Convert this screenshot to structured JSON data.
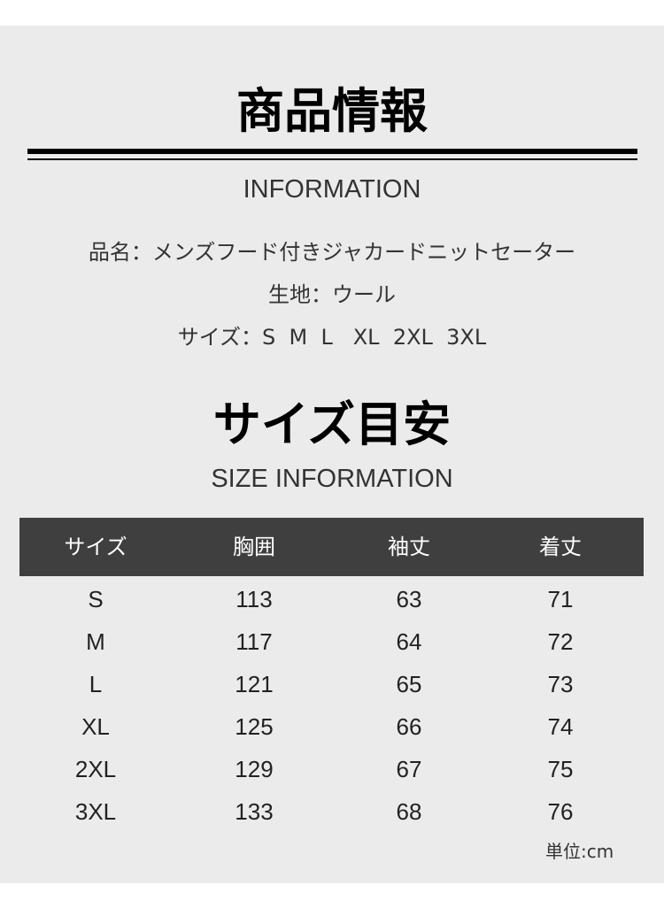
{
  "product_section": {
    "title": "商品情報",
    "subtitle": "INFORMATION",
    "lines": [
      "品名：メンズフード付きジャカードニットセーター",
      "生地：ウール",
      "サイズ：S  M  L   XL  2XL  3XL"
    ]
  },
  "size_section": {
    "title": "サイズ目安",
    "subtitle": "SIZE INFORMATION",
    "headers": [
      "サイズ",
      "胸囲",
      "袖丈",
      "着丈"
    ],
    "rows": [
      [
        "S",
        "113",
        "63",
        "71"
      ],
      [
        "M",
        "117",
        "64",
        "72"
      ],
      [
        "L",
        "121",
        "65",
        "73"
      ],
      [
        "XL",
        "125",
        "66",
        "74"
      ],
      [
        "2XL",
        "129",
        "67",
        "75"
      ],
      [
        "3XL",
        "133",
        "68",
        "76"
      ]
    ],
    "unit": "単位:cm"
  },
  "colors": {
    "background": "#ebebeb",
    "header_bar": "#3f3f3f",
    "header_text": "#ffffff"
  }
}
